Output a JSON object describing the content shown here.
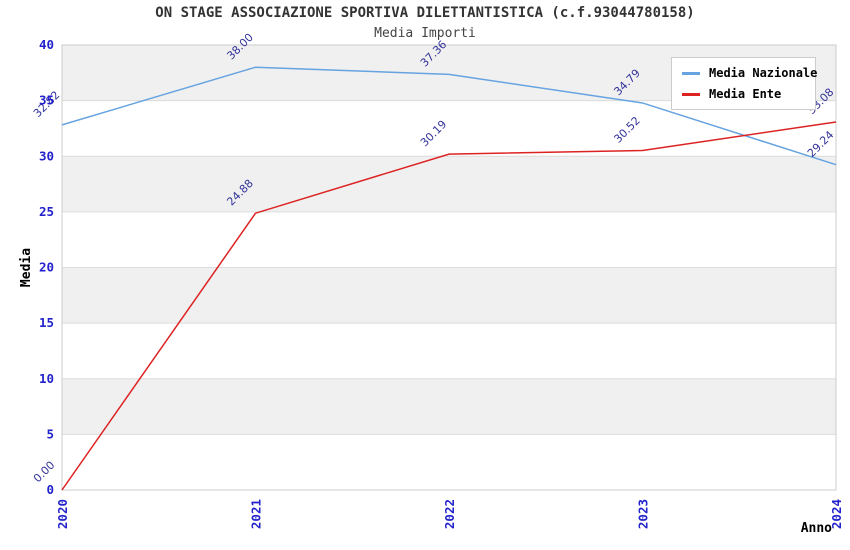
{
  "header": {
    "title": "ON STAGE ASSOCIAZIONE SPORTIVA DILETTANTISTICA (c.f.93044780158)",
    "subtitle": "Media Importi"
  },
  "colors": {
    "series_nazionale": "#66a3e0",
    "series_ente": "#dd2222",
    "tick_label": "#2222cc",
    "data_label": "#333399",
    "band_gray": "#f0f0f0",
    "band_white": "#ffffff",
    "grid_line": "#dcdcdc",
    "plot_border": "#cccccc"
  },
  "chart_data": {
    "type": "line",
    "title": "ON STAGE ASSOCIAZIONE SPORTIVA DILETTANTISTICA (c.f.93044780158)",
    "subtitle": "Media Importi",
    "xlabel": "Anno",
    "ylabel": "Media",
    "categories": [
      "2020",
      "2021",
      "2022",
      "2023",
      "2024"
    ],
    "ylim": [
      0,
      40
    ],
    "ytick_step": 5,
    "yticks": [
      0,
      5,
      10,
      15,
      20,
      25,
      30,
      35,
      40
    ],
    "grid": "horizontal-bands-alternating",
    "legend_position": "top-right",
    "data_label_decimals": 2,
    "data_label_rotation_deg": -45,
    "xtick_rotation_deg": -90,
    "series": [
      {
        "name": "Media Nazionale",
        "color": "#66a3e0",
        "values": [
          32.82,
          38.0,
          37.36,
          34.79,
          29.24
        ]
      },
      {
        "name": "Media Ente",
        "color": "#dd2222",
        "values": [
          0.0,
          24.88,
          30.19,
          30.52,
          33.08
        ]
      }
    ]
  }
}
